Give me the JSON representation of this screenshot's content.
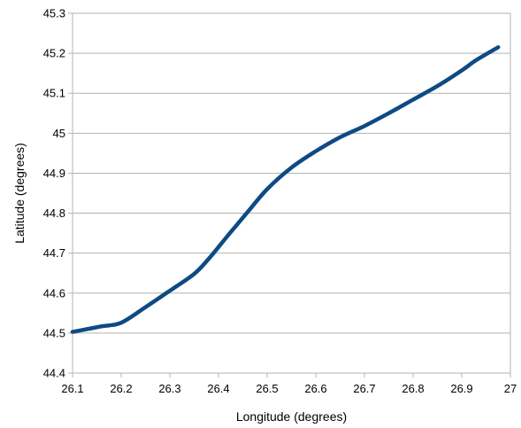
{
  "chart_data": {
    "type": "line",
    "title": "",
    "xlabel": "Longitude (degrees)",
    "ylabel": "Latitude (degrees)",
    "xlim": [
      26.1,
      27
    ],
    "ylim": [
      44.4,
      45.3
    ],
    "x_ticks": [
      "26.1",
      "26.2",
      "26.3",
      "26.4",
      "26.5",
      "26.6",
      "26.7",
      "26.8",
      "26.9",
      "27"
    ],
    "y_ticks": [
      "44.4",
      "44.5",
      "44.6",
      "44.7",
      "44.8",
      "44.9",
      "45",
      "45.1",
      "45.2",
      "45.3"
    ],
    "grid": "horizontal",
    "legend": "none",
    "series": [
      {
        "color": "#0e4a84",
        "x": [
          26.1,
          26.13,
          26.16,
          26.2,
          26.25,
          26.3,
          26.35,
          26.38,
          26.42,
          26.46,
          26.5,
          26.55,
          26.6,
          26.65,
          26.7,
          26.75,
          26.8,
          26.85,
          26.9,
          26.93,
          26.975
        ],
        "y": [
          44.503,
          44.51,
          44.517,
          44.526,
          44.565,
          44.606,
          44.648,
          44.686,
          44.745,
          44.803,
          44.86,
          44.914,
          44.955,
          44.99,
          45.018,
          45.05,
          45.084,
          45.118,
          45.157,
          45.183,
          45.215
        ]
      }
    ]
  }
}
